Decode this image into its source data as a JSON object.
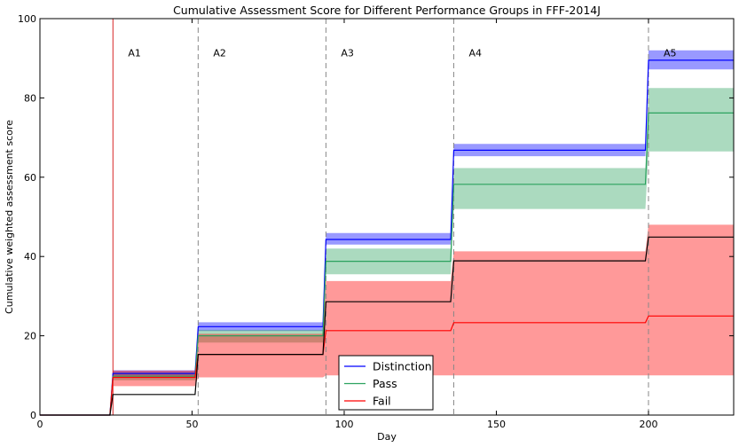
{
  "chart_data": {
    "type": "line",
    "title": "Cumulative Assessment Score for Different Performance Groups in FFF-2014J",
    "xlabel": "Day",
    "ylabel": "Cumulative weighted assessment score",
    "xlim": [
      0,
      228
    ],
    "ylim": [
      0,
      100
    ],
    "x_ticks": [
      0,
      50,
      100,
      150,
      200
    ],
    "y_ticks": [
      0,
      20,
      40,
      60,
      80,
      100
    ],
    "grid": false,
    "legend_placement": "bottom-center",
    "assessments": [
      {
        "label": "A1",
        "day": 24,
        "color": "#d62728"
      },
      {
        "label": "A2",
        "day": 52,
        "color": "#888888"
      },
      {
        "label": "A3",
        "day": 94,
        "color": "#888888"
      },
      {
        "label": "A4",
        "day": 136,
        "color": "#888888"
      },
      {
        "label": "A5",
        "day": 200,
        "color": "#888888"
      }
    ],
    "series": [
      {
        "name": "Distinction",
        "color": "#0000ff",
        "fill": "#0000ff",
        "points": [
          [
            0,
            0
          ],
          [
            23,
            0
          ],
          [
            24,
            10.5
          ],
          [
            51,
            10.5
          ],
          [
            52,
            22.3
          ],
          [
            93,
            22.3
          ],
          [
            94,
            44.3
          ],
          [
            135,
            44.3
          ],
          [
            136,
            66.8
          ],
          [
            199,
            66.8
          ],
          [
            200,
            89.5
          ],
          [
            228,
            89.5
          ]
        ],
        "band": [
          [
            0,
            0,
            0
          ],
          [
            23,
            0,
            0
          ],
          [
            24,
            9.7,
            11.3
          ],
          [
            51,
            9.7,
            11.3
          ],
          [
            52,
            21.2,
            23.4
          ],
          [
            93,
            21.2,
            23.4
          ],
          [
            94,
            43.0,
            45.9
          ],
          [
            135,
            43.0,
            45.9
          ],
          [
            136,
            65.3,
            68.4
          ],
          [
            199,
            65.3,
            68.4
          ],
          [
            200,
            87.2,
            92.0
          ],
          [
            228,
            87.2,
            92.0
          ]
        ]
      },
      {
        "name": "Pass",
        "color": "#2ca25f",
        "fill": "#2ca25f",
        "points": [
          [
            0,
            0
          ],
          [
            23,
            0
          ],
          [
            24,
            9.8
          ],
          [
            51,
            9.8
          ],
          [
            52,
            20.0
          ],
          [
            93,
            20.0
          ],
          [
            94,
            38.8
          ],
          [
            135,
            38.8
          ],
          [
            136,
            58.2
          ],
          [
            199,
            58.2
          ],
          [
            200,
            76.2
          ],
          [
            228,
            76.2
          ]
        ],
        "band": [
          [
            0,
            0,
            0
          ],
          [
            23,
            0,
            0
          ],
          [
            24,
            8.8,
            10.8
          ],
          [
            51,
            8.8,
            10.8
          ],
          [
            52,
            18.3,
            21.5
          ],
          [
            93,
            18.3,
            21.5
          ],
          [
            94,
            35.5,
            42.0
          ],
          [
            135,
            35.5,
            42.0
          ],
          [
            136,
            52.0,
            62.3
          ],
          [
            199,
            52.0,
            62.3
          ],
          [
            200,
            66.5,
            82.5
          ],
          [
            228,
            66.5,
            82.5
          ]
        ]
      },
      {
        "name": "Fail",
        "color": "#ff0000",
        "fill": "#ff0000",
        "points": [
          [
            0,
            0
          ],
          [
            23,
            0
          ],
          [
            24,
            9.5
          ],
          [
            51,
            9.5
          ],
          [
            52,
            15.3
          ],
          [
            93,
            15.3
          ],
          [
            94,
            21.3
          ],
          [
            135,
            21.3
          ],
          [
            136,
            23.3
          ],
          [
            199,
            23.3
          ],
          [
            200,
            25.0
          ],
          [
            228,
            25.0
          ]
        ],
        "band": [
          [
            0,
            0,
            0
          ],
          [
            23,
            0,
            0
          ],
          [
            24,
            7.3,
            11.2
          ],
          [
            51,
            7.3,
            11.2
          ],
          [
            52,
            9.5,
            20.5
          ],
          [
            93,
            9.5,
            20.5
          ],
          [
            94,
            10.0,
            33.8
          ],
          [
            135,
            10.0,
            33.8
          ],
          [
            136,
            10.0,
            41.3
          ],
          [
            199,
            10.0,
            41.3
          ],
          [
            200,
            10.0,
            48.0
          ],
          [
            228,
            10.0,
            48.0
          ]
        ]
      },
      {
        "color": "#000000",
        "points": [
          [
            0,
            0
          ],
          [
            23,
            0
          ],
          [
            24,
            5.2
          ],
          [
            51,
            5.2
          ],
          [
            52,
            15.3
          ],
          [
            93,
            15.3
          ],
          [
            94,
            28.6
          ],
          [
            135,
            28.6
          ],
          [
            136,
            38.9
          ],
          [
            199,
            38.9
          ],
          [
            200,
            44.9
          ],
          [
            228,
            44.9
          ]
        ]
      }
    ]
  }
}
